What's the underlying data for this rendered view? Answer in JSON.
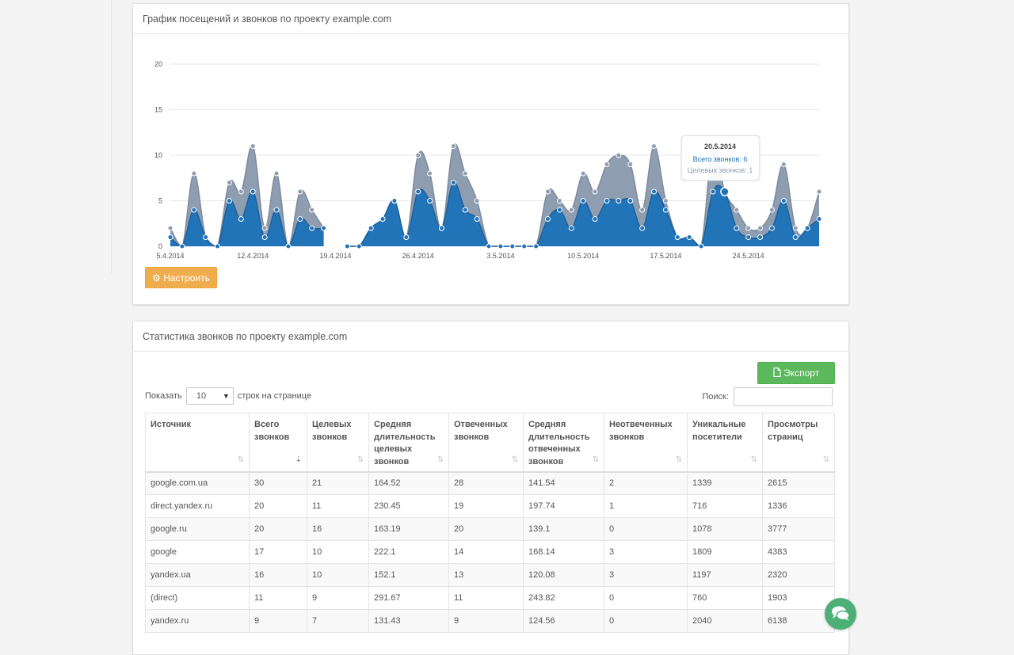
{
  "chart_panel": {
    "title": "График посещений и звонков по проекту example.com",
    "setup_button": "Настроить",
    "setup_icon": "gear-icon"
  },
  "chart_data": {
    "type": "area",
    "x_tick_labels": [
      "5.4.2014",
      "12.4.2014",
      "19.4.2014",
      "26.4.2014",
      "3.5.2014",
      "10.5.2014",
      "17.5.2014",
      "24.5.2014"
    ],
    "ylim": [
      0,
      20
    ],
    "y_ticks": [
      0,
      5,
      10,
      15,
      20
    ],
    "grid": true,
    "series": [
      {
        "name": "Всего звонков",
        "color": "#8f9db0",
        "values": [
          2,
          0,
          8,
          1,
          0,
          7,
          6,
          11,
          2,
          8,
          0,
          6,
          4,
          2,
          null,
          0,
          0,
          2,
          3,
          5,
          1,
          10,
          8,
          2,
          11,
          8,
          5,
          0,
          0,
          0,
          0,
          0,
          6,
          5,
          4,
          8,
          6,
          9,
          10,
          9,
          4,
          11,
          5,
          1,
          1,
          0,
          11,
          6,
          4,
          2,
          2,
          4,
          9,
          2,
          2,
          6
        ]
      },
      {
        "name": "Целевых звонков",
        "color": "#2274b9",
        "values": [
          1,
          0,
          4,
          1,
          0,
          5,
          3,
          6,
          1,
          4,
          0,
          3,
          2,
          2,
          null,
          0,
          0,
          2,
          3,
          5,
          1,
          6,
          5,
          2,
          7,
          4,
          3,
          0,
          0,
          0,
          0,
          0,
          3,
          4,
          2,
          5,
          3,
          5,
          5,
          5,
          2,
          6,
          4,
          1,
          1,
          0,
          6,
          6,
          2,
          1,
          1,
          2,
          5,
          1,
          2,
          3
        ]
      }
    ],
    "tooltip": {
      "date": "20.5.2014",
      "total_label": "Всего звонков:",
      "total_value": "6",
      "target_label": "Целевых звонков:",
      "target_value": "1"
    }
  },
  "table_panel": {
    "title": "Статистика звонков по проекту example.com",
    "export_button": "Экспорт",
    "export_icon": "file-icon",
    "show_label": "Показать",
    "page_length": "10",
    "per_page_label": "строк на странице",
    "search_label": "Поиск:",
    "search_value": ""
  },
  "table": {
    "columns": [
      {
        "label": "Источник",
        "sort": "both"
      },
      {
        "label": "Всего звонков",
        "sort": "desc"
      },
      {
        "label": "Целевых звонков",
        "sort": "both"
      },
      {
        "label": "Средняя длительность целевых звонков",
        "sort": "both"
      },
      {
        "label": "Отвеченных звонков",
        "sort": "both"
      },
      {
        "label": "Средняя длительность отвеченных звонков",
        "sort": "both"
      },
      {
        "label": "Неотвеченных звонков",
        "sort": "both"
      },
      {
        "label": "Уникальные посетители",
        "sort": "both"
      },
      {
        "label": "Просмотры страниц",
        "sort": "both"
      }
    ],
    "rows": [
      [
        "google.com.ua",
        "30",
        "21",
        "164.52",
        "28",
        "141.54",
        "2",
        "1339",
        "2615"
      ],
      [
        "direct.yandex.ru",
        "20",
        "11",
        "230.45",
        "19",
        "197.74",
        "1",
        "716",
        "1336"
      ],
      [
        "google.ru",
        "20",
        "16",
        "163.19",
        "20",
        "139.1",
        "0",
        "1078",
        "3777"
      ],
      [
        "google",
        "17",
        "10",
        "222.1",
        "14",
        "168.14",
        "3",
        "1809",
        "4383"
      ],
      [
        "yandex.ua",
        "16",
        "10",
        "152.1",
        "13",
        "120.08",
        "3",
        "1197",
        "2320"
      ],
      [
        "(direct)",
        "11",
        "9",
        "291.67",
        "11",
        "243.82",
        "0",
        "760",
        "1903"
      ],
      [
        "yandex.ru",
        "9",
        "7",
        "131.43",
        "9",
        "124.56",
        "0",
        "2040",
        "6138"
      ]
    ]
  },
  "chat_icon": "chat-bubbles-icon"
}
